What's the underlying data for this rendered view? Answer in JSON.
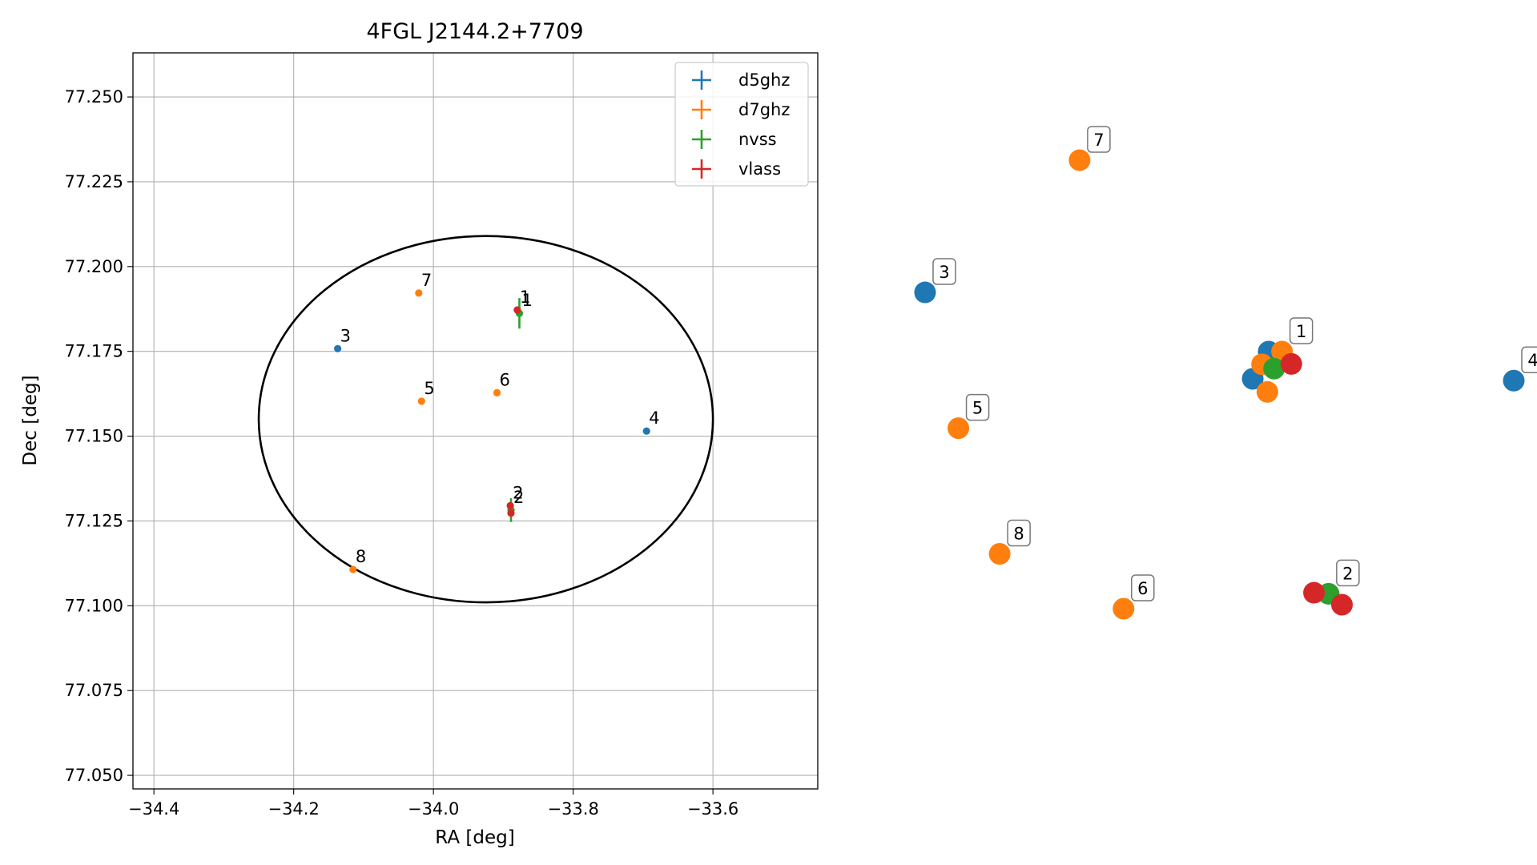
{
  "chart_data": [
    {
      "type": "scatter",
      "title": "4FGL J2144.2+7709",
      "xlabel": "RA [deg]",
      "ylabel": "Dec [deg]",
      "xlim": [
        -34.43,
        -33.45
      ],
      "ylim": [
        77.046,
        77.263
      ],
      "xticks": [
        -34.4,
        -34.2,
        -34.0,
        -33.8,
        -33.6
      ],
      "xtick_labels": [
        "−34.4",
        "−34.2",
        "−34.0",
        "−33.8",
        "−33.6"
      ],
      "yticks": [
        77.05,
        77.075,
        77.1,
        77.125,
        77.15,
        77.175,
        77.2,
        77.225,
        77.25
      ],
      "ytick_labels": [
        "77.050",
        "77.075",
        "77.100",
        "77.125",
        "77.150",
        "77.175",
        "77.200",
        "77.225",
        "77.250"
      ],
      "grid": true,
      "legend_position": "top-right",
      "ellipse": {
        "center": [
          -33.925,
          77.155
        ],
        "semi_axis_ra": 0.325,
        "semi_axis_dec": 0.054
      },
      "series": [
        {
          "name": "d5ghz",
          "color": "#1f77b4",
          "points": [
            {
              "label": "3",
              "ra": -34.137,
              "dec": 77.1758
            },
            {
              "label": "4",
              "ra": -33.695,
              "dec": 77.1515
            }
          ]
        },
        {
          "name": "d7ghz",
          "color": "#ff7f0e",
          "points": [
            {
              "label": "7",
              "ra": -34.021,
              "dec": 77.1922
            },
            {
              "label": "5",
              "ra": -34.017,
              "dec": 77.1603
            },
            {
              "label": "6",
              "ra": -33.909,
              "dec": 77.1628
            },
            {
              "label": "8",
              "ra": -34.115,
              "dec": 77.1107
            }
          ]
        },
        {
          "name": "nvss",
          "color": "#2ca02c",
          "points": [
            {
              "label": "1",
              "ra": -33.877,
              "dec": 77.1862,
              "dec_err": 0.0045
            },
            {
              "label": "2",
              "ra": -33.889,
              "dec": 77.1282,
              "dec_err": 0.0035
            }
          ]
        },
        {
          "name": "vlass",
          "color": "#d62728",
          "points": [
            {
              "label": "1",
              "ra": -33.88,
              "dec": 77.1872
            },
            {
              "label": "2",
              "ra": -33.89,
              "dec": 77.1295
            },
            {
              "label": "",
              "ra": -33.889,
              "dec": 77.1273
            }
          ]
        }
      ]
    },
    {
      "type": "scatter",
      "axes": "off",
      "series": [
        {
          "name": "d5ghz",
          "color": "#1f77b4",
          "points": [
            {
              "label": "3",
              "x": -34.137,
              "y": 77.1758
            },
            {
              "label": "4",
              "x": -33.695,
              "y": 77.1515
            },
            {
              "label": "",
              "x": -33.879,
              "y": 77.1595
            },
            {
              "label": "",
              "x": -33.891,
              "y": 77.152
            }
          ]
        },
        {
          "name": "d7ghz",
          "color": "#ff7f0e",
          "points": [
            {
              "label": "7",
              "x": -34.021,
              "y": 77.2122
            },
            {
              "label": "5",
              "x": -34.112,
              "y": 77.1384
            },
            {
              "label": "6",
              "x": -33.988,
              "y": 77.0887
            },
            {
              "label": "8",
              "x": -34.081,
              "y": 77.1038
            },
            {
              "label": "1",
              "x": -33.869,
              "y": 77.1595
            },
            {
              "label": "",
              "x": -33.884,
              "y": 77.156
            },
            {
              "label": "",
              "x": -33.88,
              "y": 77.1484
            }
          ]
        },
        {
          "name": "nvss",
          "color": "#2ca02c",
          "points": [
            {
              "label": "",
              "x": -33.875,
              "y": 77.1548
            },
            {
              "label": "2",
              "x": -33.834,
              "y": 77.0928
            }
          ]
        },
        {
          "name": "vlass",
          "color": "#d62728",
          "points": [
            {
              "label": "",
              "x": -33.862,
              "y": 77.1561
            },
            {
              "label": "",
              "x": -33.845,
              "y": 77.0931
            },
            {
              "label": "",
              "x": -33.824,
              "y": 77.0898
            }
          ]
        }
      ]
    }
  ]
}
